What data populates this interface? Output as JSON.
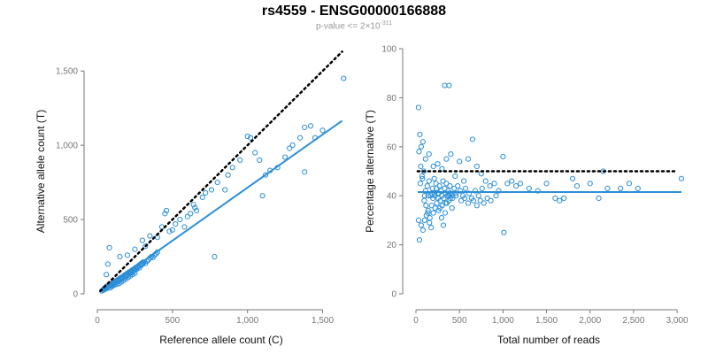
{
  "title": "rs4559 - ENSG00000166888",
  "subtitle": {
    "prefix": "p-value <= 2×10",
    "exponent": "-311"
  },
  "colors": {
    "points": "#2b8fd8",
    "fit_line": "#2b8fd8",
    "reference_line": "#000000",
    "ticks": "#777777"
  },
  "chart_data": [
    {
      "type": "scatter",
      "xlabel": "Reference allele count (C)",
      "ylabel": "Alternative allele count (T)",
      "xlim": [
        0,
        1650
      ],
      "ylim": [
        0,
        1650
      ],
      "xticks": [
        0,
        500,
        1000,
        1500
      ],
      "xtick_labels": [
        "0",
        "500",
        "1,000",
        "1,500"
      ],
      "yticks": [
        0,
        500,
        1000,
        1500
      ],
      "ytick_labels": [
        "0",
        "500",
        "1,000",
        "1,500"
      ],
      "grid": false,
      "reference_line": {
        "style": "dotted",
        "points": [
          [
            20,
            20
          ],
          [
            1630,
            1630
          ]
        ]
      },
      "fit_line": {
        "style": "solid",
        "points": [
          [
            20,
            15
          ],
          [
            1630,
            1165
          ]
        ]
      },
      "points": [
        [
          30,
          20
        ],
        [
          40,
          25
        ],
        [
          45,
          35
        ],
        [
          50,
          30
        ],
        [
          55,
          40
        ],
        [
          60,
          35
        ],
        [
          60,
          50
        ],
        [
          70,
          45
        ],
        [
          75,
          55
        ],
        [
          80,
          50
        ],
        [
          85,
          40
        ],
        [
          90,
          60
        ],
        [
          95,
          55
        ],
        [
          100,
          65
        ],
        [
          100,
          50
        ],
        [
          110,
          70
        ],
        [
          115,
          60
        ],
        [
          120,
          80
        ],
        [
          125,
          75
        ],
        [
          130,
          65
        ],
        [
          135,
          90
        ],
        [
          140,
          85
        ],
        [
          145,
          70
        ],
        [
          150,
          100
        ],
        [
          155,
          95
        ],
        [
          160,
          80
        ],
        [
          165,
          110
        ],
        [
          170,
          105
        ],
        [
          175,
          90
        ],
        [
          180,
          120
        ],
        [
          185,
          115
        ],
        [
          190,
          100
        ],
        [
          195,
          130
        ],
        [
          200,
          125
        ],
        [
          205,
          110
        ],
        [
          210,
          140
        ],
        [
          215,
          135
        ],
        [
          220,
          120
        ],
        [
          225,
          150
        ],
        [
          230,
          145
        ],
        [
          235,
          130
        ],
        [
          240,
          160
        ],
        [
          245,
          155
        ],
        [
          250,
          140
        ],
        [
          255,
          170
        ],
        [
          260,
          165
        ],
        [
          270,
          180
        ],
        [
          280,
          175
        ],
        [
          290,
          190
        ],
        [
          300,
          200
        ],
        [
          310,
          210
        ],
        [
          320,
          205
        ],
        [
          330,
          220
        ],
        [
          340,
          230
        ],
        [
          350,
          240
        ],
        [
          360,
          250
        ],
        [
          370,
          245
        ],
        [
          380,
          260
        ],
        [
          390,
          270
        ],
        [
          400,
          280
        ],
        [
          60,
          130
        ],
        [
          70,
          200
        ],
        [
          80,
          310
        ],
        [
          150,
          250
        ],
        [
          200,
          260
        ],
        [
          250,
          300
        ],
        [
          300,
          360
        ],
        [
          320,
          320
        ],
        [
          350,
          390
        ],
        [
          400,
          380
        ],
        [
          430,
          450
        ],
        [
          450,
          540
        ],
        [
          460,
          560
        ],
        [
          480,
          420
        ],
        [
          500,
          430
        ],
        [
          520,
          470
        ],
        [
          550,
          500
        ],
        [
          580,
          450
        ],
        [
          600,
          520
        ],
        [
          620,
          540
        ],
        [
          640,
          600
        ],
        [
          650,
          580
        ],
        [
          660,
          560
        ],
        [
          700,
          650
        ],
        [
          720,
          680
        ],
        [
          760,
          700
        ],
        [
          780,
          250
        ],
        [
          800,
          750
        ],
        [
          850,
          700
        ],
        [
          870,
          800
        ],
        [
          900,
          850
        ],
        [
          950,
          900
        ],
        [
          1000,
          1060
        ],
        [
          1020,
          1050
        ],
        [
          1050,
          950
        ],
        [
          1080,
          900
        ],
        [
          1100,
          660
        ],
        [
          1120,
          800
        ],
        [
          1150,
          830
        ],
        [
          1200,
          850
        ],
        [
          1250,
          920
        ],
        [
          1280,
          980
        ],
        [
          1300,
          1000
        ],
        [
          1350,
          1050
        ],
        [
          1380,
          1120
        ],
        [
          1420,
          1130
        ],
        [
          1450,
          1050
        ],
        [
          1500,
          1100
        ],
        [
          1640,
          1450
        ],
        [
          1380,
          820
        ],
        [
          42,
          28
        ],
        [
          52,
          38
        ],
        [
          58,
          44
        ],
        [
          65,
          48
        ],
        [
          72,
          52
        ],
        [
          78,
          58
        ],
        [
          88,
          62
        ],
        [
          96,
          68
        ],
        [
          104,
          72
        ],
        [
          112,
          78
        ],
        [
          118,
          82
        ],
        [
          126,
          88
        ],
        [
          134,
          94
        ],
        [
          142,
          98
        ],
        [
          152,
          106
        ],
        [
          162,
          112
        ],
        [
          172,
          118
        ],
        [
          182,
          126
        ],
        [
          192,
          132
        ],
        [
          202,
          140
        ],
        [
          212,
          146
        ],
        [
          222,
          152
        ],
        [
          232,
          160
        ],
        [
          242,
          166
        ],
        [
          252,
          174
        ],
        [
          262,
          180
        ],
        [
          275,
          190
        ],
        [
          285,
          198
        ],
        [
          295,
          206
        ],
        [
          305,
          214
        ]
      ]
    },
    {
      "type": "scatter",
      "xlabel": "Total number of reads",
      "ylabel": "Percentage alternative (T)",
      "xlim": [
        0,
        3050
      ],
      "ylim": [
        0,
        100
      ],
      "xticks": [
        0,
        500,
        1000,
        1500,
        2000,
        2500,
        3000
      ],
      "xtick_labels": [
        "0",
        "500",
        "1,000",
        "1,500",
        "2,000",
        "2,500",
        "3,000"
      ],
      "yticks": [
        0,
        20,
        40,
        60,
        80,
        100
      ],
      "ytick_labels": [
        "0",
        "20",
        "40",
        "60",
        "80",
        "100"
      ],
      "grid": false,
      "reference_line": {
        "style": "dotted",
        "points": [
          [
            20,
            50
          ],
          [
            3000,
            50
          ]
        ]
      },
      "fit_line": {
        "style": "solid",
        "points": [
          [
            20,
            41.5
          ],
          [
            3050,
            41.5
          ]
        ]
      },
      "points": [
        [
          330,
          85
        ],
        [
          380,
          85
        ],
        [
          30,
          76
        ],
        [
          60,
          60
        ],
        [
          45,
          65
        ],
        [
          80,
          62
        ],
        [
          110,
          55
        ],
        [
          150,
          57
        ],
        [
          200,
          52
        ],
        [
          250,
          53
        ],
        [
          300,
          51
        ],
        [
          350,
          55
        ],
        [
          400,
          57
        ],
        [
          450,
          48
        ],
        [
          500,
          54
        ],
        [
          550,
          46
        ],
        [
          600,
          55
        ],
        [
          650,
          63
        ],
        [
          700,
          52
        ],
        [
          750,
          49
        ],
        [
          800,
          46
        ],
        [
          850,
          44
        ],
        [
          900,
          45
        ],
        [
          950,
          42
        ],
        [
          1000,
          56
        ],
        [
          1010,
          25
        ],
        [
          1050,
          45
        ],
        [
          1100,
          46
        ],
        [
          1150,
          44
        ],
        [
          1200,
          45
        ],
        [
          1300,
          43
        ],
        [
          1400,
          42
        ],
        [
          1500,
          45
        ],
        [
          1600,
          39
        ],
        [
          1650,
          38
        ],
        [
          1700,
          39
        ],
        [
          1800,
          47
        ],
        [
          1850,
          44
        ],
        [
          2000,
          45
        ],
        [
          2100,
          39
        ],
        [
          2150,
          50
        ],
        [
          2200,
          43
        ],
        [
          2350,
          43
        ],
        [
          2450,
          45
        ],
        [
          2550,
          43
        ],
        [
          3050,
          47
        ],
        [
          30,
          30
        ],
        [
          40,
          22
        ],
        [
          60,
          28
        ],
        [
          80,
          26
        ],
        [
          100,
          30
        ],
        [
          120,
          32
        ],
        [
          140,
          34
        ],
        [
          160,
          31
        ],
        [
          180,
          36
        ],
        [
          200,
          33
        ],
        [
          220,
          35
        ],
        [
          240,
          37
        ],
        [
          260,
          34
        ],
        [
          280,
          38
        ],
        [
          300,
          36
        ],
        [
          320,
          39
        ],
        [
          340,
          37
        ],
        [
          360,
          40
        ],
        [
          380,
          38
        ],
        [
          400,
          41
        ],
        [
          50,
          45
        ],
        [
          70,
          48
        ],
        [
          90,
          50
        ],
        [
          110,
          42
        ],
        [
          130,
          44
        ],
        [
          150,
          46
        ],
        [
          170,
          40
        ],
        [
          190,
          43
        ],
        [
          210,
          47
        ],
        [
          230,
          45
        ],
        [
          250,
          41
        ],
        [
          270,
          44
        ],
        [
          290,
          42
        ],
        [
          310,
          46
        ],
        [
          330,
          43
        ],
        [
          350,
          45
        ],
        [
          370,
          42
        ],
        [
          390,
          44
        ],
        [
          420,
          40
        ],
        [
          440,
          43
        ],
        [
          460,
          41
        ],
        [
          480,
          44
        ],
        [
          510,
          42
        ],
        [
          540,
          40
        ],
        [
          570,
          43
        ],
        [
          610,
          41
        ],
        [
          640,
          39
        ],
        [
          680,
          42
        ],
        [
          720,
          40
        ],
        [
          760,
          43
        ],
        [
          35,
          58
        ],
        [
          55,
          52
        ],
        [
          75,
          47
        ],
        [
          95,
          38
        ],
        [
          115,
          36
        ],
        [
          135,
          33
        ],
        [
          155,
          29
        ],
        [
          175,
          27
        ],
        [
          195,
          39
        ],
        [
          215,
          41
        ],
        [
          235,
          43
        ],
        [
          255,
          39
        ],
        [
          275,
          35
        ],
        [
          295,
          31
        ],
        [
          315,
          28
        ],
        [
          335,
          33
        ],
        [
          355,
          37
        ],
        [
          375,
          41
        ],
        [
          395,
          39
        ],
        [
          415,
          35
        ],
        [
          100,
          40
        ],
        [
          140,
          40
        ],
        [
          180,
          41
        ],
        [
          220,
          40
        ],
        [
          260,
          41
        ],
        [
          300,
          40
        ],
        [
          340,
          41
        ],
        [
          380,
          40
        ],
        [
          420,
          39
        ],
        [
          460,
          40
        ],
        [
          520,
          38
        ],
        [
          560,
          39
        ],
        [
          600,
          37
        ],
        [
          660,
          38
        ],
        [
          700,
          36
        ],
        [
          740,
          38
        ],
        [
          780,
          37
        ],
        [
          820,
          39
        ],
        [
          860,
          38
        ],
        [
          920,
          40
        ]
      ]
    }
  ]
}
